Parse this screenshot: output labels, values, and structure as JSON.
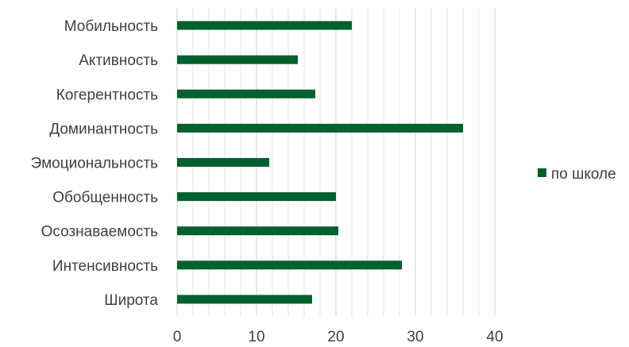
{
  "chart_data": {
    "type": "bar",
    "orientation": "horizontal",
    "categories": [
      "Мобильность",
      "Активность",
      "Когерентность",
      "Доминантность",
      "Эмоциональность",
      "Обобщенность",
      "Осознаваемость",
      "Интенсивность",
      "Широта"
    ],
    "series": [
      {
        "name": "по школе",
        "color": "#00612e",
        "values": [
          22,
          15.2,
          17.4,
          36,
          11.6,
          20,
          20.3,
          28.3,
          17
        ]
      }
    ],
    "xlim": [
      0,
      40
    ],
    "xticks": [
      "0",
      "10",
      "20",
      "30",
      "40"
    ],
    "grid": "vertical major and minor lines",
    "legend_position": "right"
  }
}
